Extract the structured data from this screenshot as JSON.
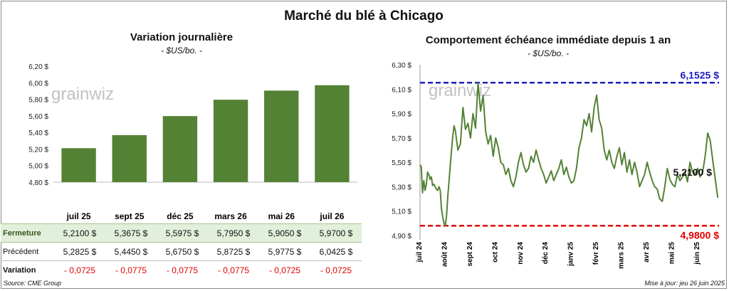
{
  "title": "Marché du blé à Chicago",
  "daily": {
    "title": "Variation journalière",
    "unit": "- $US/bo. -",
    "y_ticks": [
      "6,20 $",
      "6,00 $",
      "5,80 $",
      "5,60 $",
      "5,40 $",
      "5,20 $",
      "5,00 $",
      "4,80 $"
    ],
    "table": {
      "row_labels": {
        "close": "Fermeture",
        "previous": "Précédent",
        "change": "Variation"
      },
      "close": [
        "5,2100  $",
        "5,3675  $",
        "5,5975  $",
        "5,7950  $",
        "5,9050  $",
        "5,9700  $"
      ],
      "previous": [
        "5,2825  $",
        "5,4450  $",
        "5,6750  $",
        "5,8725  $",
        "5,9775  $",
        "6,0425  $"
      ],
      "change": [
        "- 0,0725",
        "- 0,0775",
        "- 0,0775",
        "- 0,0775",
        "- 0,0725",
        "- 0,0725"
      ]
    }
  },
  "history": {
    "title": "Comportement  échéance immédiate depuis 1 an",
    "unit": "- $US/bo. -",
    "y_ticks": [
      "6,30 $",
      "6,10 $",
      "5,90 $",
      "5,70 $",
      "5,50 $",
      "5,30 $",
      "5,10 $",
      "4,90 $"
    ],
    "x_ticks": [
      "juil 24",
      "août 24",
      "sept 24",
      "oct 24",
      "nov 24",
      "déc 24",
      "janv 25",
      "févr 25",
      "mars 25",
      "avr 25",
      "mai 25",
      "juin 25"
    ],
    "high_label": "6,1525 $",
    "low_label": "4,9800 $",
    "last_label": "5,2100 $"
  },
  "watermark": "grainwiz",
  "source": "Source: CME Group",
  "updated": "Mise à jour: jeu 26 juin 2025",
  "colors": {
    "bar": "#548235",
    "line": "#548235",
    "high": "#1f1fbf",
    "low": "#e00000",
    "negative": "#e00000",
    "close_row_bg": "#e2efda"
  },
  "chart_data": [
    {
      "type": "bar",
      "title": "Variation journalière",
      "categories": [
        "juil 25",
        "sept 25",
        "déc 25",
        "mars 26",
        "mai 26",
        "juil 26"
      ],
      "values": [
        5.21,
        5.3675,
        5.5975,
        5.795,
        5.905,
        5.97
      ],
      "ylabel": "- $US/bo. -",
      "ylim": [
        4.8,
        6.2
      ],
      "grid": false
    },
    {
      "type": "line",
      "title": "Comportement  échéance immédiate depuis 1 an",
      "ylabel": "- $US/bo. -",
      "ylim": [
        4.9,
        6.3
      ],
      "x_categories": [
        "juil 24",
        "août 24",
        "sept 24",
        "oct 24",
        "nov 24",
        "déc 24",
        "janv 25",
        "févr 25",
        "mars 25",
        "avr 25",
        "mai 25",
        "juin 25"
      ],
      "x": [
        0,
        0.05,
        0.1,
        0.15,
        0.2,
        0.25,
        0.3,
        0.35,
        0.4,
        0.45,
        0.5,
        0.55,
        0.6,
        0.65,
        0.7,
        0.75,
        0.8,
        0.85,
        0.9,
        0.95,
        1.0,
        1.05,
        1.1,
        1.15,
        1.2,
        1.25,
        1.3,
        1.35,
        1.4,
        1.5,
        1.6,
        1.7,
        1.8,
        1.9,
        2.0,
        2.1,
        2.2,
        2.3,
        2.4,
        2.5,
        2.6,
        2.7,
        2.8,
        2.9,
        3.0,
        3.1,
        3.2,
        3.3,
        3.4,
        3.5,
        3.6,
        3.7,
        3.8,
        3.9,
        4.0,
        4.1,
        4.2,
        4.3,
        4.4,
        4.5,
        4.6,
        4.7,
        4.8,
        4.9,
        5.0,
        5.1,
        5.2,
        5.3,
        5.4,
        5.5,
        5.6,
        5.7,
        5.8,
        5.9,
        6.0,
        6.1,
        6.2,
        6.3,
        6.4,
        6.5,
        6.6,
        6.7,
        6.8,
        6.9,
        7.0,
        7.1,
        7.2,
        7.3,
        7.4,
        7.5,
        7.6,
        7.7,
        7.8,
        7.9,
        8.0,
        8.1,
        8.2,
        8.3,
        8.4,
        8.5,
        8.6,
        8.7,
        8.8,
        8.9,
        9.0,
        9.1,
        9.2,
        9.3,
        9.4,
        9.5,
        9.6,
        9.7,
        9.8,
        9.9,
        10.0,
        10.1,
        10.2,
        10.3,
        10.4,
        10.5,
        10.6,
        10.7,
        10.8,
        10.9,
        11.0,
        11.1,
        11.2,
        11.3,
        11.4,
        11.5,
        11.6,
        11.8
      ],
      "series": [
        {
          "values": [
            5.48,
            5.46,
            5.25,
            5.35,
            5.27,
            5.32,
            5.42,
            5.4,
            5.36,
            5.38,
            5.31,
            5.32,
            5.3,
            5.28,
            5.27,
            5.3,
            5.27,
            5.12,
            5.05,
            5.0,
            4.98,
            5.06,
            5.22,
            5.35,
            5.48,
            5.6,
            5.72,
            5.8,
            5.76,
            5.6,
            5.65,
            5.95,
            5.77,
            5.82,
            5.7,
            5.9,
            5.78,
            6.15,
            5.92,
            6.05,
            5.75,
            5.65,
            5.72,
            5.55,
            5.7,
            5.62,
            5.5,
            5.48,
            5.4,
            5.45,
            5.35,
            5.3,
            5.38,
            5.5,
            5.58,
            5.48,
            5.42,
            5.45,
            5.55,
            5.5,
            5.6,
            5.52,
            5.45,
            5.4,
            5.33,
            5.38,
            5.43,
            5.35,
            5.4,
            5.45,
            5.52,
            5.4,
            5.46,
            5.38,
            5.33,
            5.35,
            5.45,
            5.62,
            5.7,
            5.85,
            5.8,
            5.9,
            5.75,
            5.95,
            6.05,
            5.85,
            5.78,
            5.6,
            5.52,
            5.6,
            5.5,
            5.45,
            5.55,
            5.62,
            5.48,
            5.58,
            5.42,
            5.52,
            5.4,
            5.5,
            5.42,
            5.3,
            5.35,
            5.4,
            5.5,
            5.42,
            5.35,
            5.3,
            5.28,
            5.2,
            5.18,
            5.3,
            5.45,
            5.36,
            5.32,
            5.3,
            5.4,
            5.35,
            5.38,
            5.42,
            5.34,
            5.5,
            5.42,
            5.4,
            5.45,
            5.38,
            5.42,
            5.55,
            5.74,
            5.68,
            5.52,
            5.21
          ]
        }
      ],
      "reference_lines": [
        {
          "label": "6,1525 $",
          "value": 6.1525
        },
        {
          "label": "4,9800 $",
          "value": 4.98
        }
      ]
    }
  ]
}
